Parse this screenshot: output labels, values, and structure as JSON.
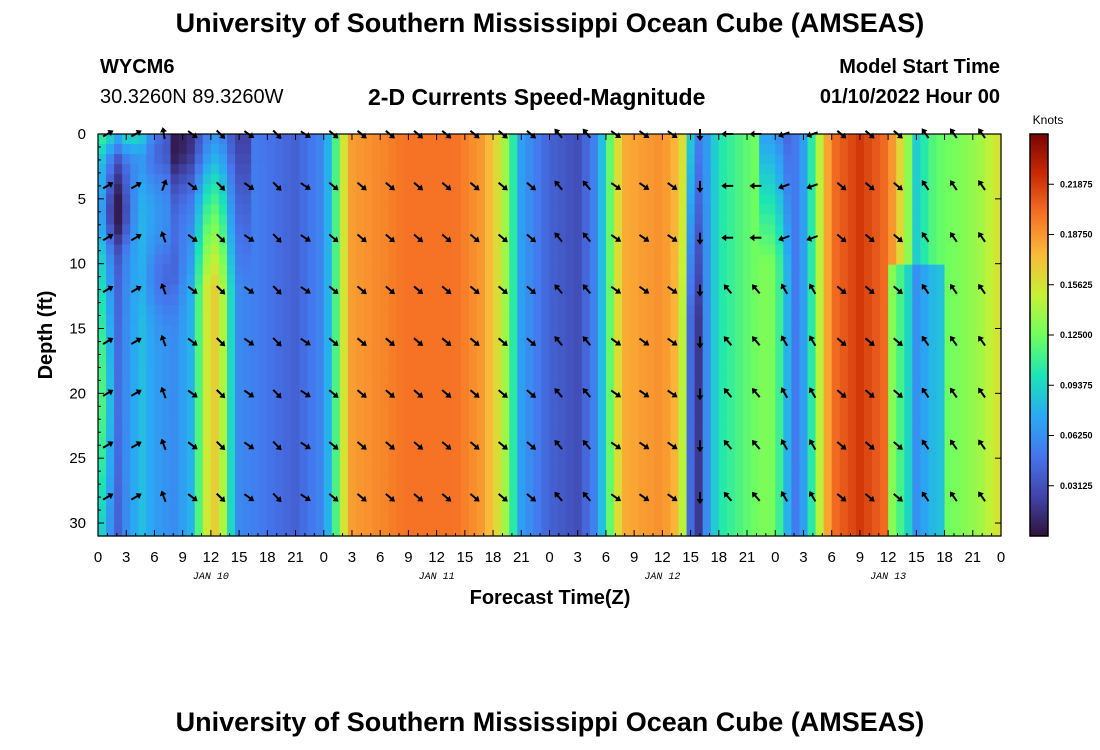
{
  "header": {
    "title": "University of Southern Mississippi Ocean Cube (AMSEAS)",
    "station": "WYCM6",
    "location": "30.3260N  89.3260W",
    "plot_title": "2-D Currents Speed-Magnitude",
    "model_start_label": "Model Start Time",
    "model_start_value": "01/10/2022 Hour 00"
  },
  "footer": {
    "title": "University of Southern Mississippi Ocean Cube (AMSEAS)"
  },
  "chart_data": {
    "type": "heatmap",
    "title": "2-D Currents Speed-Magnitude",
    "xlabel": "Forecast Time(Z)",
    "ylabel": "Depth (ft)",
    "xlim": [
      0,
      96
    ],
    "ylim": [
      31,
      0
    ],
    "x_ticks": [
      0,
      3,
      6,
      9,
      12,
      15,
      18,
      21,
      24,
      27,
      30,
      33,
      36,
      39,
      42,
      45,
      48,
      51,
      54,
      57,
      60,
      63,
      66,
      69,
      72,
      75,
      78,
      81,
      84,
      87,
      90,
      93,
      96
    ],
    "x_tick_labels": [
      "0",
      "3",
      "6",
      "9",
      "12",
      "15",
      "18",
      "21",
      "0",
      "3",
      "6",
      "9",
      "12",
      "15",
      "18",
      "21",
      "0",
      "3",
      "6",
      "9",
      "12",
      "15",
      "18",
      "21",
      "0",
      "3",
      "6",
      "9",
      "12",
      "15",
      "18",
      "21",
      "0"
    ],
    "y_ticks": [
      0,
      5,
      10,
      15,
      20,
      25,
      30
    ],
    "y_tick_labels": [
      "0",
      "5",
      "10",
      "15",
      "20",
      "25",
      "30"
    ],
    "day_labels": [
      {
        "x": 12,
        "label": "JAN 10"
      },
      {
        "x": 36,
        "label": "JAN 11"
      },
      {
        "x": 60,
        "label": "JAN 12"
      },
      {
        "x": 84,
        "label": "JAN 13"
      }
    ],
    "colorbar": {
      "unit": "Knots",
      "min": 0,
      "max": 0.25,
      "ticks": [
        0.03125,
        0.0625,
        0.09375,
        0.125,
        0.15625,
        0.1875,
        0.21875
      ],
      "tick_labels": [
        "0.03125",
        "0.06250",
        "0.09375",
        "0.12500",
        "0.15625",
        "0.18750",
        "0.21875"
      ]
    },
    "speed_profile_knots": [
      {
        "t": 0,
        "v": 0.095
      },
      {
        "t": 1,
        "v": 0.07
      },
      {
        "t": 2,
        "v": 0.035
      },
      {
        "t": 3,
        "v": 0.06
      },
      {
        "t": 4.5,
        "v": 0.085
      },
      {
        "t": 6,
        "v": 0.07
      },
      {
        "t": 8,
        "v": 0.06
      },
      {
        "t": 10,
        "v": 0.08
      },
      {
        "t": 11,
        "v": 0.13
      },
      {
        "t": 12,
        "v": 0.17
      },
      {
        "t": 13,
        "v": 0.16
      },
      {
        "t": 14,
        "v": 0.1
      },
      {
        "t": 15,
        "v": 0.06
      },
      {
        "t": 18,
        "v": 0.05
      },
      {
        "t": 21,
        "v": 0.04
      },
      {
        "t": 24,
        "v": 0.06
      },
      {
        "t": 25,
        "v": 0.1
      },
      {
        "t": 26,
        "v": 0.15
      },
      {
        "t": 27,
        "v": 0.185
      },
      {
        "t": 33,
        "v": 0.2
      },
      {
        "t": 38,
        "v": 0.2
      },
      {
        "t": 41,
        "v": 0.185
      },
      {
        "t": 43,
        "v": 0.15
      },
      {
        "t": 44,
        "v": 0.11
      },
      {
        "t": 45,
        "v": 0.07
      },
      {
        "t": 48,
        "v": 0.04
      },
      {
        "t": 51,
        "v": 0.03
      },
      {
        "t": 53,
        "v": 0.06
      },
      {
        "t": 54,
        "v": 0.1
      },
      {
        "t": 55,
        "v": 0.15
      },
      {
        "t": 56,
        "v": 0.18
      },
      {
        "t": 60,
        "v": 0.19
      },
      {
        "t": 62,
        "v": 0.17
      },
      {
        "t": 63,
        "v": 0.09
      },
      {
        "t": 64,
        "v": 0.05
      },
      {
        "t": 66,
        "v": 0.1
      },
      {
        "t": 69,
        "v": 0.12
      },
      {
        "t": 71,
        "v": 0.13
      },
      {
        "t": 72,
        "v": 0.125
      },
      {
        "t": 73,
        "v": 0.09
      },
      {
        "t": 74,
        "v": 0.05
      },
      {
        "t": 75,
        "v": 0.07
      },
      {
        "t": 76,
        "v": 0.11
      },
      {
        "t": 77,
        "v": 0.16
      },
      {
        "t": 78,
        "v": 0.2
      },
      {
        "t": 81,
        "v": 0.22
      },
      {
        "t": 84,
        "v": 0.2
      },
      {
        "t": 86,
        "v": 0.14
      },
      {
        "t": 87,
        "v": 0.09
      },
      {
        "t": 89,
        "v": 0.12
      },
      {
        "t": 92,
        "v": 0.13
      },
      {
        "t": 94,
        "v": 0.14
      },
      {
        "t": 96,
        "v": 0.16
      }
    ]
  }
}
